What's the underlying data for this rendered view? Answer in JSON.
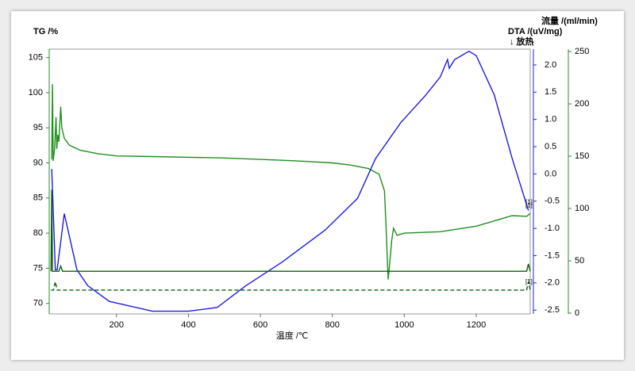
{
  "chart_data": {
    "type": "line",
    "y_title": "TG /%",
    "y2_title": "DTA /(uV/mg)",
    "y3_title": "流量 /(ml/min)",
    "annotation": "↓ 放热",
    "x_title": "温度 /℃",
    "xlim": [
      13,
      1350
    ],
    "xticks": [
      200,
      400,
      600,
      800,
      1000,
      1200
    ],
    "ylim": [
      68.5,
      106.2
    ],
    "yticks": [
      70,
      75,
      80,
      85,
      90,
      95,
      100,
      105
    ],
    "y2lim": [
      -2.57,
      2.29
    ],
    "y2ticks": [
      {
        "value": 2,
        "label": "2.0"
      },
      1.5,
      {
        "value": 1,
        "label": "1.0"
      },
      0.5,
      {
        "value": 0,
        "label": "0.0"
      },
      -0.5,
      {
        "value": -1,
        "label": "-1.0"
      },
      -1.5,
      {
        "value": -2,
        "label": "-2.0"
      },
      -2.5
    ],
    "y3lim": [
      -0.8,
      252.3
    ],
    "y3ticks": [
      0,
      50,
      100,
      150,
      200,
      250
    ],
    "axis_colors": {
      "y": "#2e8b2e",
      "y2": "#2222cc",
      "y3": "#2e8b2e"
    },
    "series": [
      {
        "axis": "y",
        "color": "#1f8f1f",
        "dash": false,
        "x": [
          20,
          22,
          24,
          28,
          32,
          34,
          37,
          40,
          45,
          48,
          55,
          70,
          100,
          150,
          200,
          300,
          400,
          500,
          600,
          700,
          800,
          850,
          900,
          930,
          945,
          950,
          955,
          960,
          965,
          970,
          980,
          1000,
          1100,
          1200,
          1300,
          1340,
          1350
        ],
        "values": [
          90.5,
          101.2,
          90.3,
          92,
          96.5,
          92,
          94,
          93,
          98,
          95,
          93.5,
          92.5,
          91.8,
          91.3,
          91,
          90.9,
          90.8,
          90.7,
          90.5,
          90.3,
          90,
          89.7,
          89.2,
          88.4,
          86,
          80,
          73.4,
          76,
          79,
          80.7,
          79.7,
          80,
          80.2,
          81,
          82.5,
          82.4,
          82.8
        ]
      },
      {
        "axis": "y2",
        "color": "#1c1ce6",
        "dash": false,
        "x": [
          20,
          30,
          35,
          55,
          90,
          120,
          180,
          300,
          400,
          480,
          560,
          660,
          780,
          870,
          920,
          990,
          1060,
          1100,
          1120,
          1125,
          1140,
          1180,
          1200,
          1250,
          1300,
          1345
        ],
        "values": [
          0.09,
          -1.76,
          -1.76,
          -0.73,
          -1.76,
          -2.05,
          -2.34,
          -2.52,
          -2.52,
          -2.45,
          -2.05,
          -1.62,
          -1.03,
          -0.45,
          0.28,
          0.94,
          1.45,
          1.78,
          2.1,
          1.94,
          2.1,
          2.25,
          2.17,
          1.45,
          0.28,
          -0.67
        ]
      },
      {
        "axis": "y3",
        "color": "#0b5e0b",
        "dash": false,
        "x": [
          18,
          20,
          22,
          40,
          45,
          50,
          1340,
          1345,
          1350
        ],
        "values": [
          40,
          118,
          40,
          40,
          45,
          40,
          40,
          47,
          40
        ]
      },
      {
        "axis": "y3",
        "color": "#0b5e0b",
        "dash": true,
        "x": [
          18,
          25,
          30,
          35,
          40,
          1340,
          1345,
          1350
        ],
        "values": [
          22,
          22,
          30,
          22,
          22,
          22,
          30,
          22
        ]
      }
    ],
    "series_labels": [
      "[1]",
      "[1]",
      "[1]"
    ]
  }
}
